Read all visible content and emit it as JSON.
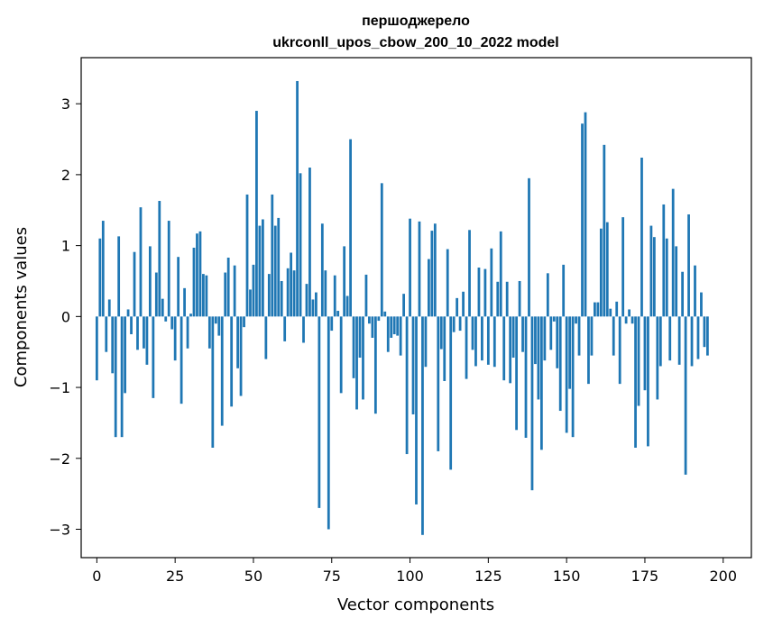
{
  "chart_data": {
    "type": "bar",
    "title": "першоджерело",
    "subtitle": "ukrconll_upos_cbow_200_10_2022 model",
    "xlabel": "Vector components",
    "ylabel": "Components values",
    "xlim": [
      -5,
      209
    ],
    "ylim": [
      -3.4,
      3.65
    ],
    "xticks": [
      0,
      25,
      50,
      75,
      100,
      125,
      150,
      175,
      200
    ],
    "yticks": [
      -3,
      -2,
      -1,
      0,
      1,
      2,
      3
    ],
    "xtick_labels": [
      "0",
      "25",
      "50",
      "75",
      "100",
      "125",
      "150",
      "175",
      "200"
    ],
    "ytick_labels": [
      "−3",
      "−2",
      "−1",
      "0",
      "1",
      "2",
      "3"
    ],
    "grid": false,
    "bar_color": "#1f77b4",
    "values": [
      -0.9,
      1.1,
      1.35,
      -0.5,
      0.24,
      -0.8,
      -1.7,
      1.13,
      -1.7,
      -1.08,
      0.1,
      -0.25,
      0.91,
      -0.47,
      1.54,
      -0.45,
      -0.68,
      0.99,
      -1.15,
      0.62,
      1.63,
      0.25,
      -0.07,
      1.35,
      -0.18,
      -0.62,
      0.84,
      -1.23,
      0.4,
      -0.45,
      0.04,
      0.97,
      1.17,
      1.2,
      0.6,
      0.58,
      -0.45,
      -1.85,
      -0.1,
      -0.27,
      -1.54,
      0.62,
      0.83,
      -1.27,
      0.72,
      -0.73,
      -1.12,
      -0.15,
      1.72,
      0.38,
      0.73,
      2.9,
      1.28,
      1.37,
      -0.6,
      0.6,
      1.72,
      1.28,
      1.39,
      0.5,
      -0.35,
      0.68,
      0.9,
      0.65,
      3.32,
      2.02,
      -0.37,
      0.46,
      2.1,
      0.24,
      0.34,
      -2.7,
      1.31,
      0.65,
      -3.0,
      -0.2,
      0.58,
      0.08,
      -1.08,
      0.99,
      0.29,
      2.5,
      -0.87,
      -1.31,
      -0.58,
      -1.17,
      0.59,
      -0.1,
      -0.3,
      -1.37,
      -0.06,
      1.88,
      0.07,
      -0.5,
      -0.3,
      -0.25,
      -0.27,
      -0.55,
      0.32,
      -1.94,
      1.38,
      -1.38,
      -2.65,
      1.34,
      -3.08,
      -0.71,
      0.81,
      1.21,
      1.31,
      -1.9,
      -0.46,
      -0.91,
      0.95,
      -2.16,
      -0.22,
      0.26,
      -0.2,
      0.35,
      -0.88,
      1.22,
      -0.47,
      -0.7,
      0.69,
      -0.62,
      0.67,
      -0.68,
      0.96,
      -0.71,
      0.49,
      1.2,
      -0.9,
      0.49,
      -0.94,
      -0.58,
      -1.6,
      0.5,
      -0.5,
      -1.71,
      1.95,
      -2.45,
      -0.67,
      -1.17,
      -1.88,
      -0.62,
      0.61,
      -0.47,
      -0.07,
      -0.73,
      -1.33,
      0.73,
      -1.64,
      -1.02,
      -1.7,
      -0.1,
      -0.55,
      2.72,
      2.88,
      -0.95,
      -0.55,
      0.2,
      0.2,
      1.24,
      2.42,
      1.33,
      0.11,
      -0.55,
      0.21,
      -0.95,
      1.4,
      -0.1,
      0.1,
      -0.1,
      -1.85,
      -1.26,
      2.24,
      -1.04,
      -1.83,
      1.28,
      1.12,
      -1.17,
      -0.7,
      1.58,
      1.1,
      -0.62,
      1.8,
      0.99,
      -0.68,
      0.63,
      -2.23,
      1.44,
      -0.7,
      0.72,
      -0.6,
      0.34,
      -0.43,
      -0.55
    ]
  }
}
